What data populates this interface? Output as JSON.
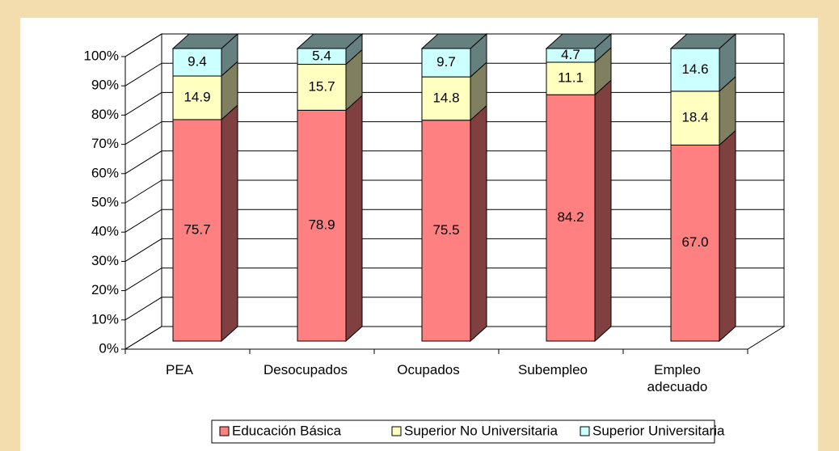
{
  "chart_data": {
    "type": "bar3d_stacked",
    "categories": [
      "PEA",
      "Desocupados",
      "Ocupados",
      "Subempleo",
      "Empleo adecuado"
    ],
    "series": [
      {
        "name": "Educación Básica",
        "color": "#ff8080",
        "side": "#804040",
        "values": [
          75.7,
          78.9,
          75.5,
          84.2,
          67.0
        ],
        "value_labels": [
          "75.7",
          "78.9",
          "75.5",
          "84.2",
          "67.0"
        ]
      },
      {
        "name": "Superior No Universitaria",
        "color": "#ffffc0",
        "side": "#808060",
        "values": [
          14.9,
          15.7,
          14.8,
          11.1,
          18.4
        ],
        "value_labels": [
          "14.9",
          "15.7",
          "14.8",
          "11.1",
          "18.4"
        ]
      },
      {
        "name": "Superior Universitaria",
        "color": "#ccffff",
        "side": "#668080",
        "values": [
          9.4,
          5.4,
          9.7,
          4.7,
          14.6
        ],
        "value_labels": [
          "9.4",
          "5.4",
          "9.7",
          "4.7",
          "14.6"
        ]
      }
    ],
    "ylim": [
      0,
      100
    ],
    "yticks": [
      {
        "value": 0,
        "label": "0%"
      },
      {
        "value": 10,
        "label": "10%"
      },
      {
        "value": 20,
        "label": "20%"
      },
      {
        "value": 30,
        "label": "30%"
      },
      {
        "value": 40,
        "label": "40%"
      },
      {
        "value": 50,
        "label": "50%"
      },
      {
        "value": 60,
        "label": "60%"
      },
      {
        "value": 70,
        "label": "70%"
      },
      {
        "value": 80,
        "label": "80%"
      },
      {
        "value": 90,
        "label": "90%"
      },
      {
        "value": 100,
        "label": "100%"
      }
    ],
    "grid": true
  }
}
